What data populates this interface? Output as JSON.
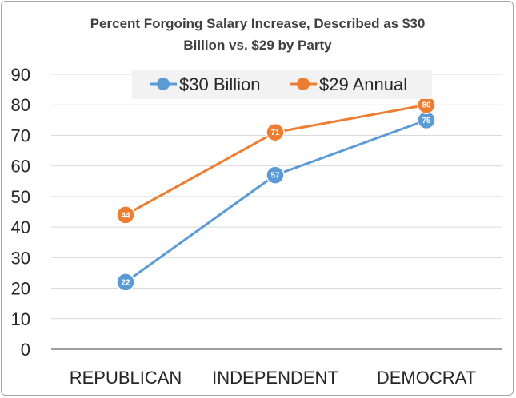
{
  "chart_data": {
    "type": "line",
    "title_lines": [
      "Percent Forgoing Salary Increase, Described as $30",
      "Billion vs. $29 by Party"
    ],
    "categories": [
      "REPUBLICAN",
      "INDEPENDENT",
      "DEMOCRAT"
    ],
    "ylim": [
      0,
      90
    ],
    "yticks": [
      0,
      10,
      20,
      30,
      40,
      50,
      60,
      70,
      80,
      90
    ],
    "grid": true,
    "legend_position": "top-center",
    "series": [
      {
        "name": "$30 Billion",
        "values": [
          22,
          57,
          75
        ],
        "color": "#5b9bd5"
      },
      {
        "name": "$29 Annual",
        "values": [
          44,
          71,
          80
        ],
        "color": "#ed7d31"
      }
    ]
  }
}
